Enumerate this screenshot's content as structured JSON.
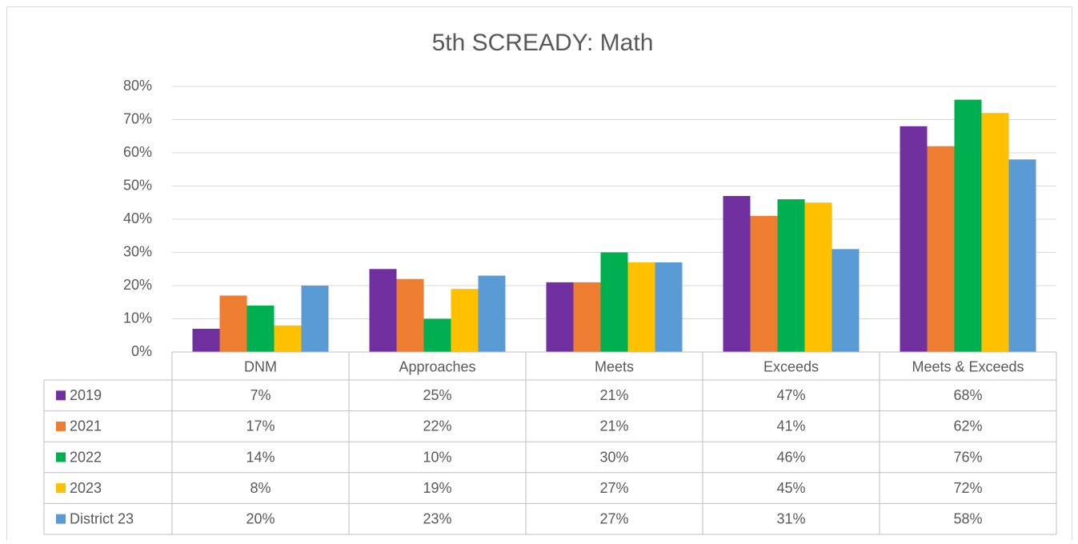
{
  "chart_data": {
    "type": "bar",
    "title": "5th SCREADY: Math",
    "categories": [
      "DNM",
      "Approaches",
      "Meets",
      "Exceeds",
      "Meets & Exceeds"
    ],
    "series": [
      {
        "name": "2019",
        "color": "#7030a0",
        "values": [
          7,
          25,
          21,
          47,
          68
        ],
        "value_labels": [
          "7%",
          "25%",
          "21%",
          "47%",
          "68%"
        ]
      },
      {
        "name": "2021",
        "color": "#ed7d31",
        "values": [
          17,
          22,
          21,
          41,
          62
        ],
        "value_labels": [
          "17%",
          "22%",
          "21%",
          "41%",
          "62%"
        ]
      },
      {
        "name": "2022",
        "color": "#00b050",
        "values": [
          14,
          10,
          30,
          46,
          76
        ],
        "value_labels": [
          "14%",
          "10%",
          "30%",
          "46%",
          "76%"
        ]
      },
      {
        "name": "2023",
        "color": "#ffc000",
        "values": [
          8,
          19,
          27,
          45,
          72
        ],
        "value_labels": [
          "8%",
          "19%",
          "27%",
          "45%",
          "72%"
        ]
      },
      {
        "name": "District 23",
        "color": "#5b9bd5",
        "values": [
          20,
          23,
          27,
          31,
          58
        ],
        "value_labels": [
          "20%",
          "23%",
          "27%",
          "31%",
          "58%"
        ]
      }
    ],
    "ylim": [
      0,
      80
    ],
    "yticks": [
      {
        "value": 0,
        "label": "0%"
      },
      {
        "value": 10,
        "label": "10%"
      },
      {
        "value": 20,
        "label": "20%"
      },
      {
        "value": 30,
        "label": "30%"
      },
      {
        "value": 40,
        "label": "40%"
      },
      {
        "value": 50,
        "label": "50%"
      },
      {
        "value": 60,
        "label": "60%"
      },
      {
        "value": 70,
        "label": "70%"
      },
      {
        "value": 80,
        "label": "80%"
      }
    ],
    "grid": true
  }
}
